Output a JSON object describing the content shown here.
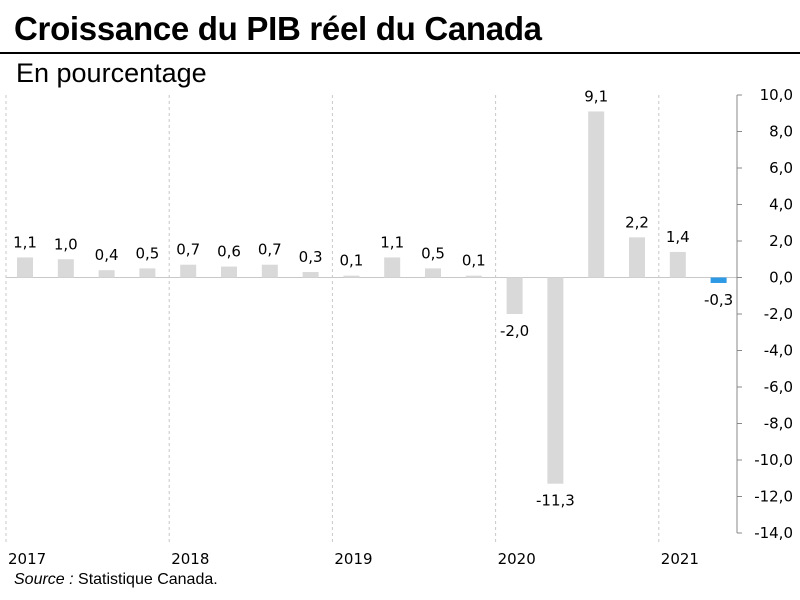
{
  "title": "Croissance du PIB réel du Canada",
  "subtitle": "En pourcentage",
  "source": {
    "prefix": "Source :",
    "text": " Statistique Canada."
  },
  "colors": {
    "bar": "#d9d9d9",
    "highlight": "#2e9ae6",
    "grid": "#c8c8c8",
    "axis": "#888888"
  },
  "chart_data": {
    "type": "bar",
    "title": "Croissance du PIB réel du Canada",
    "subtitle": "En pourcentage",
    "xlabel": "",
    "ylabel": "",
    "ylim": [
      -14,
      10
    ],
    "yticks": [
      "10,0",
      "8,0",
      "6,0",
      "4,0",
      "2,0",
      "0,0",
      "-2,0",
      "-4,0",
      "-6,0",
      "-8,0",
      "-10,0",
      "-12,0",
      "-14,0"
    ],
    "ytick_values": [
      10,
      8,
      6,
      4,
      2,
      0,
      -2,
      -4,
      -6,
      -8,
      -10,
      -12,
      -14
    ],
    "year_labels": [
      "2017",
      "2018",
      "2019",
      "2020",
      "2021"
    ],
    "categories": [
      "2017T1",
      "2017T2",
      "2017T3",
      "2017T4",
      "2018T1",
      "2018T2",
      "2018T3",
      "2018T4",
      "2019T1",
      "2019T2",
      "2019T3",
      "2019T4",
      "2020T1",
      "2020T2",
      "2020T3",
      "2020T4",
      "2021T1",
      "2021T2"
    ],
    "values": [
      1.1,
      1.0,
      0.4,
      0.5,
      0.7,
      0.6,
      0.7,
      0.3,
      0.1,
      1.1,
      0.5,
      0.1,
      -2.0,
      -11.3,
      9.1,
      2.2,
      1.4,
      -0.3
    ],
    "labels": [
      "1,1",
      "1,0",
      "0,4",
      "0,5",
      "0,7",
      "0,6",
      "0,7",
      "0,3",
      "0,1",
      "1,1",
      "0,5",
      "0,1",
      "-2,0",
      "-11,3",
      "9,1",
      "2,2",
      "1,4",
      "-0,3"
    ],
    "highlight_index": 17,
    "grid": "vertical dashed at year boundaries"
  }
}
